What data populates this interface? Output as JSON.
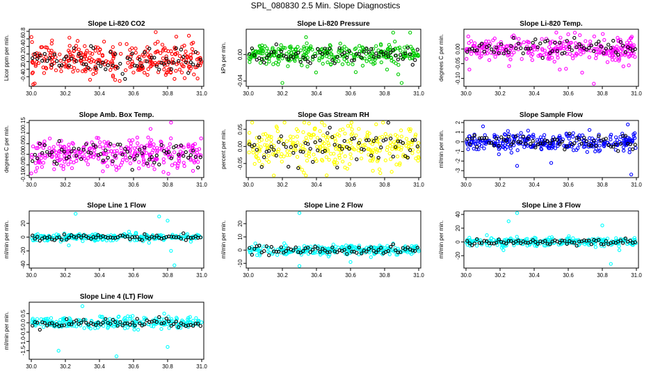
{
  "page_title": "SPL_080830  2.5 Min. Slope Diagnostics",
  "colors": {
    "red": "#ff0000",
    "green": "#00cc00",
    "magenta": "#ff00ff",
    "yellow": "#ffff00",
    "blue": "#0000ff",
    "cyan": "#00ffff",
    "overlay": "#000000",
    "axis": "#000000"
  },
  "chart_data": [
    {
      "type": "scatter",
      "title": "Slope Li-820 CO2",
      "ylabel": "Licor ppm per min.",
      "color": "red",
      "xlim": [
        30.0,
        31.0
      ],
      "ylim": [
        -0.6,
        0.8
      ],
      "xticks": [
        "30.0",
        "30.2",
        "30.4",
        "30.6",
        "30.8",
        "31.0"
      ],
      "yticks": [
        "-0.4",
        "-0.2",
        "0.0",
        "0.2",
        "0.4",
        "0.6",
        "0.8"
      ],
      "center": 0.05,
      "spread": 0.22,
      "n": 300,
      "outliers": [
        [
          30.73,
          0.78
        ],
        [
          30.02,
          -0.58
        ],
        [
          30.95,
          0.5
        ],
        [
          30.48,
          -0.4
        ]
      ]
    },
    {
      "type": "scatter",
      "title": "Slope Li-820 Pressure",
      "ylabel": "kPa per min.",
      "color": "green",
      "xlim": [
        30.0,
        31.0
      ],
      "ylim": [
        -0.045,
        0.035
      ],
      "xticks": [
        "30.0",
        "30.2",
        "30.4",
        "30.6",
        "30.8",
        "31.0"
      ],
      "yticks": [
        "-0.04",
        "0.00"
      ],
      "center": 0.0,
      "spread": 0.008,
      "n": 300,
      "outliers": [
        [
          30.2,
          -0.043
        ],
        [
          30.9,
          -0.043
        ],
        [
          30.85,
          0.033
        ],
        [
          30.95,
          0.033
        ],
        [
          30.88,
          -0.03
        ]
      ]
    },
    {
      "type": "scatter",
      "title": "Slope Li-820 Temp.",
      "ylabel": "degrees C per min.",
      "color": "magenta",
      "xlim": [
        30.0,
        31.0
      ],
      "ylim": [
        -0.12,
        0.06
      ],
      "xticks": [
        "30.0",
        "30.2",
        "30.4",
        "30.6",
        "30.8",
        "31.0"
      ],
      "yticks": [
        "-0.10",
        "-0.05",
        "0.00"
      ],
      "center": 0.0,
      "spread": 0.02,
      "n": 300,
      "outliers": [
        [
          30.75,
          -0.118
        ],
        [
          30.02,
          -0.07
        ],
        [
          30.55,
          -0.07
        ],
        [
          30.6,
          0.05
        ]
      ]
    },
    {
      "type": "scatter",
      "title": "Slope Amb. Box Temp.",
      "ylabel": "degrees C per min.",
      "color": "magenta",
      "xlim": [
        30.0,
        31.0
      ],
      "ylim": [
        -0.1,
        0.15
      ],
      "xticks": [
        "30.0",
        "30.2",
        "30.4",
        "30.6",
        "30.8",
        "31.0"
      ],
      "yticks": [
        "-0.10",
        "-0.05",
        "0.00",
        "0.05",
        "0.10",
        "0.15"
      ],
      "center": 0.0,
      "spread": 0.035,
      "n": 300,
      "outliers": [
        [
          30.82,
          0.15
        ],
        [
          30.7,
          0.12
        ],
        [
          30.0,
          -0.09
        ],
        [
          30.42,
          -0.08
        ]
      ]
    },
    {
      "type": "scatter",
      "title": "Slope Gas Stream RH",
      "ylabel": "percent per min.",
      "color": "yellow",
      "xlim": [
        30.0,
        31.0
      ],
      "ylim": [
        -0.085,
        0.07
      ],
      "xticks": [
        "30.0",
        "30.2",
        "30.4",
        "30.6",
        "30.8",
        "31.0"
      ],
      "yticks": [
        "-0.05",
        "0.00",
        "0.05"
      ],
      "center": 0.0,
      "spread": 0.03,
      "n": 300,
      "outliers": [
        [
          30.15,
          -0.085
        ],
        [
          30.75,
          0.065
        ],
        [
          30.3,
          -0.06
        ],
        [
          30.6,
          0.06
        ]
      ]
    },
    {
      "type": "scatter",
      "title": "Slope Sample Flow",
      "ylabel": "ml/min per min.",
      "color": "blue",
      "xlim": [
        30.0,
        31.0
      ],
      "ylim": [
        -3.5,
        2.0
      ],
      "xticks": [
        "30.0",
        "30.2",
        "30.4",
        "30.6",
        "30.8",
        "31.0"
      ],
      "yticks": [
        "-3",
        "-2",
        "-1",
        "0",
        "1",
        "2"
      ],
      "center": -0.1,
      "spread": 0.45,
      "n": 300,
      "outliers": [
        [
          30.97,
          -3.4
        ],
        [
          30.3,
          -2.5
        ],
        [
          30.1,
          1.6
        ],
        [
          30.95,
          1.8
        ],
        [
          30.5,
          -2.2
        ]
      ]
    },
    {
      "type": "scatter",
      "title": "Slope Line 1 Flow",
      "ylabel": "ml/min per min.",
      "color": "cyan",
      "xlim": [
        30.0,
        31.0
      ],
      "ylim": [
        -42,
        35
      ],
      "xticks": [
        "30.0",
        "30.2",
        "30.4",
        "30.6",
        "30.8",
        "31.0"
      ],
      "yticks": [
        "-40",
        "-20",
        "0",
        "20"
      ],
      "center": 0.0,
      "spread": 2.5,
      "n": 260,
      "outliers": [
        [
          30.26,
          34
        ],
        [
          30.84,
          -41
        ],
        [
          30.75,
          30
        ],
        [
          30.8,
          24
        ],
        [
          30.82,
          -20
        ],
        [
          30.22,
          -12
        ]
      ]
    },
    {
      "type": "scatter",
      "title": "Slope Line 2 Flow",
      "ylabel": "ml/min per min.",
      "color": "cyan",
      "xlim": [
        30.0,
        31.0
      ],
      "ylim": [
        -12,
        28
      ],
      "xticks": [
        "30.0",
        "30.2",
        "30.4",
        "30.6",
        "30.8",
        "31.0"
      ],
      "yticks": [
        "-10",
        "0",
        "10",
        "20"
      ],
      "center": 0.0,
      "spread": 2.0,
      "n": 260,
      "outliers": [
        [
          30.3,
          28
        ],
        [
          30.3,
          -12
        ],
        [
          30.85,
          5
        ],
        [
          30.6,
          -9
        ]
      ]
    },
    {
      "type": "scatter",
      "title": "Slope Line 3 Flow",
      "ylabel": "ml/min per min.",
      "color": "cyan",
      "xlim": [
        30.0,
        31.0
      ],
      "ylim": [
        -35,
        42
      ],
      "xticks": [
        "30.0",
        "30.2",
        "30.4",
        "30.6",
        "30.8",
        "31.0"
      ],
      "yticks": [
        "-20",
        "0",
        "20",
        "40"
      ],
      "center": 0.0,
      "spread": 3.0,
      "n": 260,
      "outliers": [
        [
          30.3,
          42
        ],
        [
          30.25,
          30
        ],
        [
          30.85,
          -32
        ],
        [
          30.8,
          24
        ],
        [
          30.9,
          -12
        ],
        [
          30.22,
          -12
        ]
      ]
    },
    {
      "type": "scatter",
      "title": "Slope Line 4 (LT) Flow",
      "ylabel": "ml/min per min.",
      "color": "cyan",
      "xlim": [
        30.0,
        31.0
      ],
      "ylim": [
        -1.85,
        1.0
      ],
      "xticks": [
        "30.0",
        "30.2",
        "30.4",
        "30.6",
        "30.8",
        "31.0"
      ],
      "yticks": [
        "-1.5",
        "-1.0",
        "-0.5",
        "0.0",
        "0.5"
      ],
      "center": 0.0,
      "spread": 0.15,
      "n": 260,
      "outliers": [
        [
          30.3,
          0.9
        ],
        [
          30.16,
          -1.5
        ],
        [
          30.5,
          -1.8
        ],
        [
          30.8,
          -1.3
        ],
        [
          30.78,
          0.5
        ]
      ]
    }
  ]
}
